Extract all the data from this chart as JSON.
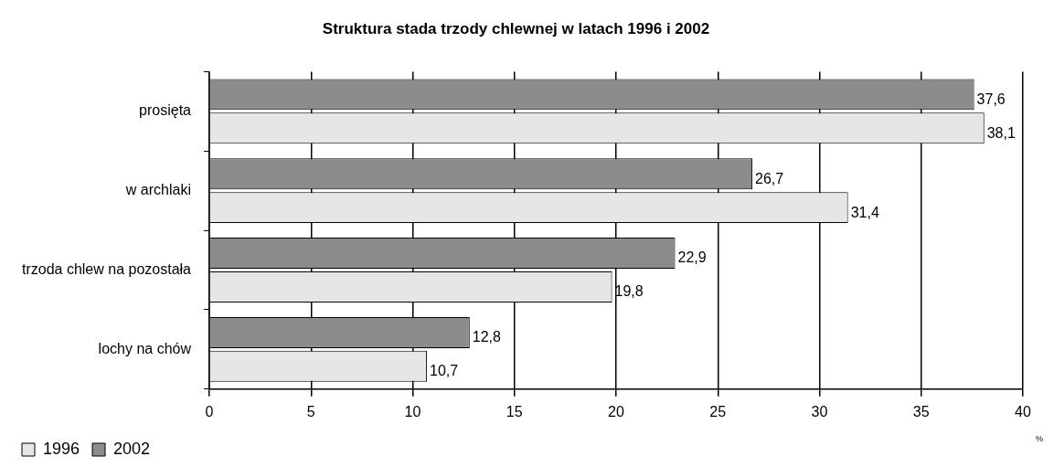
{
  "chart_data": {
    "type": "bar",
    "orientation": "horizontal",
    "title": "Struktura stada trzody chlewnej w latach 1996 i 2002",
    "xlabel": "%",
    "categories": [
      "prosięta",
      "w archlaki",
      "trzoda chlew na pozostała",
      "lochy na chów"
    ],
    "series": [
      {
        "name": "1996",
        "color": "#e6e6e6",
        "values": [
          38.1,
          31.4,
          19.8,
          10.7
        ],
        "value_labels": [
          "38,1",
          "31,4",
          "19,8",
          "10,7"
        ]
      },
      {
        "name": "2002",
        "color": "#8c8c8c",
        "values": [
          37.6,
          26.7,
          22.9,
          12.8
        ],
        "value_labels": [
          "37,6",
          "26,7",
          "22,9",
          "12,8"
        ]
      }
    ],
    "xlim": [
      0,
      40
    ],
    "xticks": [
      0,
      5,
      10,
      15,
      20,
      25,
      30,
      35,
      40
    ],
    "grid": "x",
    "legend": "bottom left"
  }
}
